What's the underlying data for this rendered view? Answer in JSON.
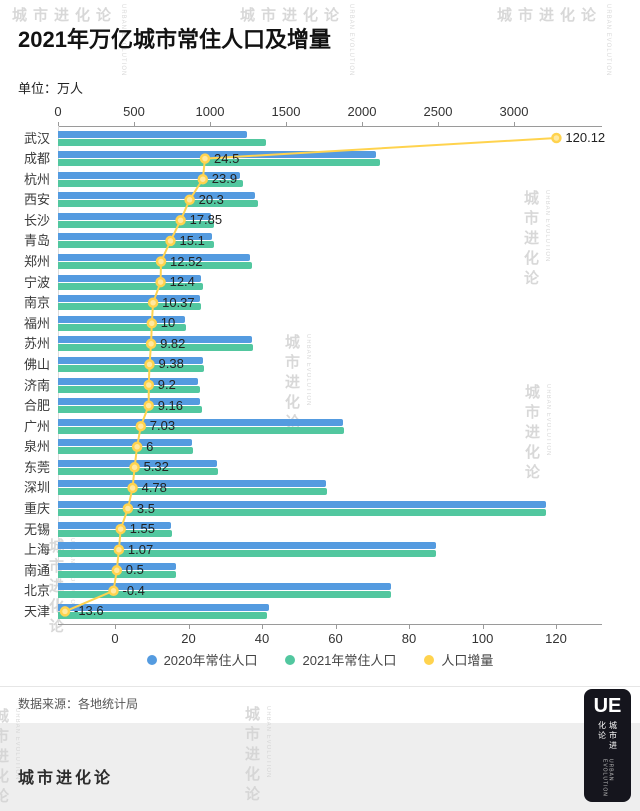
{
  "header": {
    "title": "2021年万亿城市常住人口及增量",
    "unit": "单位：万人"
  },
  "chart_data": {
    "type": "bar",
    "orientation": "horizontal",
    "title": "2021年万亿城市常住人口及增量",
    "unit": "万人",
    "categories": [
      "武汉",
      "成都",
      "杭州",
      "西安",
      "长沙",
      "青岛",
      "郑州",
      "宁波",
      "南京",
      "福州",
      "苏州",
      "佛山",
      "济南",
      "合肥",
      "广州",
      "泉州",
      "东莞",
      "深圳",
      "重庆",
      "无锡",
      "上海",
      "南通",
      "北京",
      "天津"
    ],
    "series": [
      {
        "name": "2020年常住人口",
        "type": "bar",
        "color": "#549BE0",
        "values": [
          1245,
          2095,
          1196,
          1296,
          1006,
          1011,
          1262,
          942,
          932,
          832,
          1275,
          952,
          924,
          937,
          1874,
          880,
          1048,
          1763,
          3209,
          746,
          2488,
          773,
          2189,
          1387
        ]
      },
      {
        "name": "2021年常住人口",
        "type": "bar",
        "color": "#52C79F",
        "values": [
          1365,
          2119,
          1220,
          1316,
          1024,
          1026,
          1274,
          954,
          942,
          842,
          1285,
          961,
          934,
          947,
          1881,
          886,
          1054,
          1768,
          3212,
          748,
          2489,
          773,
          2189,
          1373
        ]
      },
      {
        "name": "人口增量",
        "type": "line",
        "color": "#FFD34E",
        "values": [
          120.12,
          24.5,
          23.9,
          20.3,
          17.85,
          15.1,
          12.52,
          12.4,
          10.37,
          10,
          9.82,
          9.38,
          9.2,
          9.16,
          7.03,
          6,
          5.32,
          4.78,
          3.5,
          1.55,
          1.07,
          0.5,
          -0.4,
          -13.6
        ],
        "labels": [
          "120.12",
          "24.5",
          "23.9",
          "20.3",
          "17.85",
          "15.1",
          "12.52",
          "12.4",
          "10.37",
          "10",
          "9.82",
          "9.38",
          "9.2",
          "9.16",
          "7.03",
          "6",
          "5.32",
          "4.78",
          "3.5",
          "1.55",
          "1.07",
          "0.5",
          "-0.4",
          "-13.6"
        ]
      }
    ],
    "top_axis": {
      "ticks": [
        0,
        500,
        1000,
        1500,
        2000,
        2500,
        3000
      ],
      "applies_to": "常住人口(万人)"
    },
    "bottom_axis": {
      "ticks": [
        0,
        20,
        40,
        60,
        80,
        100,
        120
      ],
      "applies_to": "人口增量(万人)"
    },
    "legend": [
      "2020年常住人口",
      "2021年常住人口",
      "人口增量"
    ],
    "legend_position": "bottom",
    "grid": false
  },
  "colors": {
    "bar_2020": "#549BE0",
    "bar_2021": "#52C79F",
    "line_increment": "#FFD34E",
    "footer_background": "#EEEEEE",
    "watermark": "#D2D2D2"
  },
  "footer": {
    "source": "数据来源：各地统计局",
    "brand": "城市进化论",
    "logo": {
      "monogram": "UE",
      "cn": "城市进化论",
      "en": "URBAN EVOLUTION"
    }
  },
  "watermark": {
    "cn": "城市进化论",
    "en": "URBAN EVOLUTION"
  }
}
